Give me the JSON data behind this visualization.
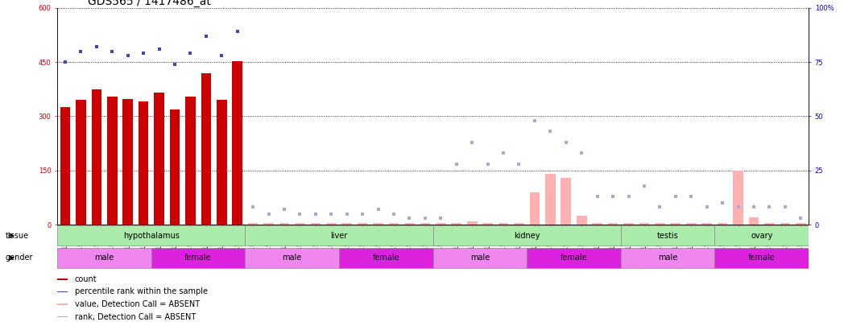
{
  "title": "GDS565 / 1417486_at",
  "samples": [
    "GSM19215",
    "GSM19216",
    "GSM19217",
    "GSM19218",
    "GSM19219",
    "GSM19220",
    "GSM19221",
    "GSM19222",
    "GSM19223",
    "GSM19224",
    "GSM19225",
    "GSM19226",
    "GSM19227",
    "GSM19228",
    "GSM19229",
    "GSM19230",
    "GSM19231",
    "GSM19232",
    "GSM19233",
    "GSM19234",
    "GSM19235",
    "GSM19236",
    "GSM19237",
    "GSM19238",
    "GSM19239",
    "GSM19240",
    "GSM19241",
    "GSM19242",
    "GSM19243",
    "GSM19244",
    "GSM19245",
    "GSM19246",
    "GSM19247",
    "GSM19248",
    "GSM19249",
    "GSM19250",
    "GSM19251",
    "GSM19252",
    "GSM19253",
    "GSM19254",
    "GSM19255",
    "GSM19256",
    "GSM19257",
    "GSM19258",
    "GSM19259",
    "GSM19260",
    "GSM19261",
    "GSM19262"
  ],
  "count_present": [
    325,
    345,
    375,
    355,
    348,
    342,
    365,
    318,
    355,
    418,
    345,
    452,
    0,
    0,
    0,
    0,
    0,
    0,
    0,
    0,
    0,
    0,
    0,
    0,
    0,
    0,
    0,
    0,
    0,
    0,
    0,
    0,
    0,
    0,
    0,
    0,
    0,
    0,
    0,
    0,
    0,
    0,
    0,
    0,
    0,
    0,
    0,
    0
  ],
  "count_absent": [
    0,
    0,
    0,
    0,
    0,
    0,
    0,
    0,
    0,
    0,
    0,
    0,
    5,
    5,
    5,
    5,
    5,
    5,
    5,
    5,
    5,
    5,
    5,
    5,
    5,
    5,
    10,
    5,
    5,
    5,
    90,
    140,
    130,
    25,
    5,
    5,
    5,
    5,
    5,
    5,
    5,
    5,
    5,
    150,
    20,
    5,
    5,
    5
  ],
  "pct_present": [
    75,
    80,
    82,
    80,
    78,
    79,
    81,
    74,
    79,
    87,
    78,
    89,
    null,
    null,
    null,
    null,
    null,
    null,
    null,
    null,
    null,
    null,
    null,
    null,
    null,
    null,
    null,
    null,
    null,
    null,
    null,
    null,
    null,
    null,
    null,
    null,
    null,
    null,
    null,
    null,
    null,
    null,
    null,
    null,
    null,
    null,
    null,
    null
  ],
  "pct_absent": [
    null,
    null,
    null,
    null,
    null,
    null,
    null,
    null,
    null,
    null,
    null,
    null,
    8,
    5,
    7,
    5,
    5,
    5,
    5,
    5,
    7,
    5,
    3,
    3,
    3,
    28,
    38,
    28,
    33,
    28,
    48,
    43,
    38,
    33,
    13,
    13,
    13,
    18,
    8,
    13,
    13,
    8,
    10,
    8,
    8,
    8,
    8,
    3
  ],
  "tissues": [
    {
      "name": "hypothalamus",
      "start": 0,
      "end": 11
    },
    {
      "name": "liver",
      "start": 12,
      "end": 23
    },
    {
      "name": "kidney",
      "start": 24,
      "end": 35
    },
    {
      "name": "testis",
      "start": 36,
      "end": 41
    },
    {
      "name": "ovary",
      "start": 42,
      "end": 47
    }
  ],
  "genders": [
    {
      "name": "male",
      "start": 0,
      "end": 5
    },
    {
      "name": "female",
      "start": 6,
      "end": 11
    },
    {
      "name": "male",
      "start": 12,
      "end": 17
    },
    {
      "name": "female",
      "start": 18,
      "end": 23
    },
    {
      "name": "male",
      "start": 24,
      "end": 29
    },
    {
      "name": "female",
      "start": 30,
      "end": 35
    },
    {
      "name": "male",
      "start": 36,
      "end": 41
    },
    {
      "name": "female",
      "start": 42,
      "end": 47
    }
  ],
  "ylim_left": [
    0,
    600
  ],
  "ylim_right": [
    0,
    100
  ],
  "yticks_left": [
    0,
    150,
    300,
    450,
    600
  ],
  "yticks_right": [
    0,
    25,
    50,
    75,
    100
  ],
  "bar_color_present": "#cc0000",
  "bar_color_absent": "#ffb0b0",
  "dot_color_present": "#4444bb",
  "dot_color_absent": "#aaaacc",
  "tissue_color": "#aaeaaa",
  "tissue_color2": "#88dd88",
  "male_color": "#ee88ee",
  "female_color": "#dd22dd",
  "title_fontsize": 10,
  "tick_fontsize": 6,
  "bg_color": "#ffffff"
}
